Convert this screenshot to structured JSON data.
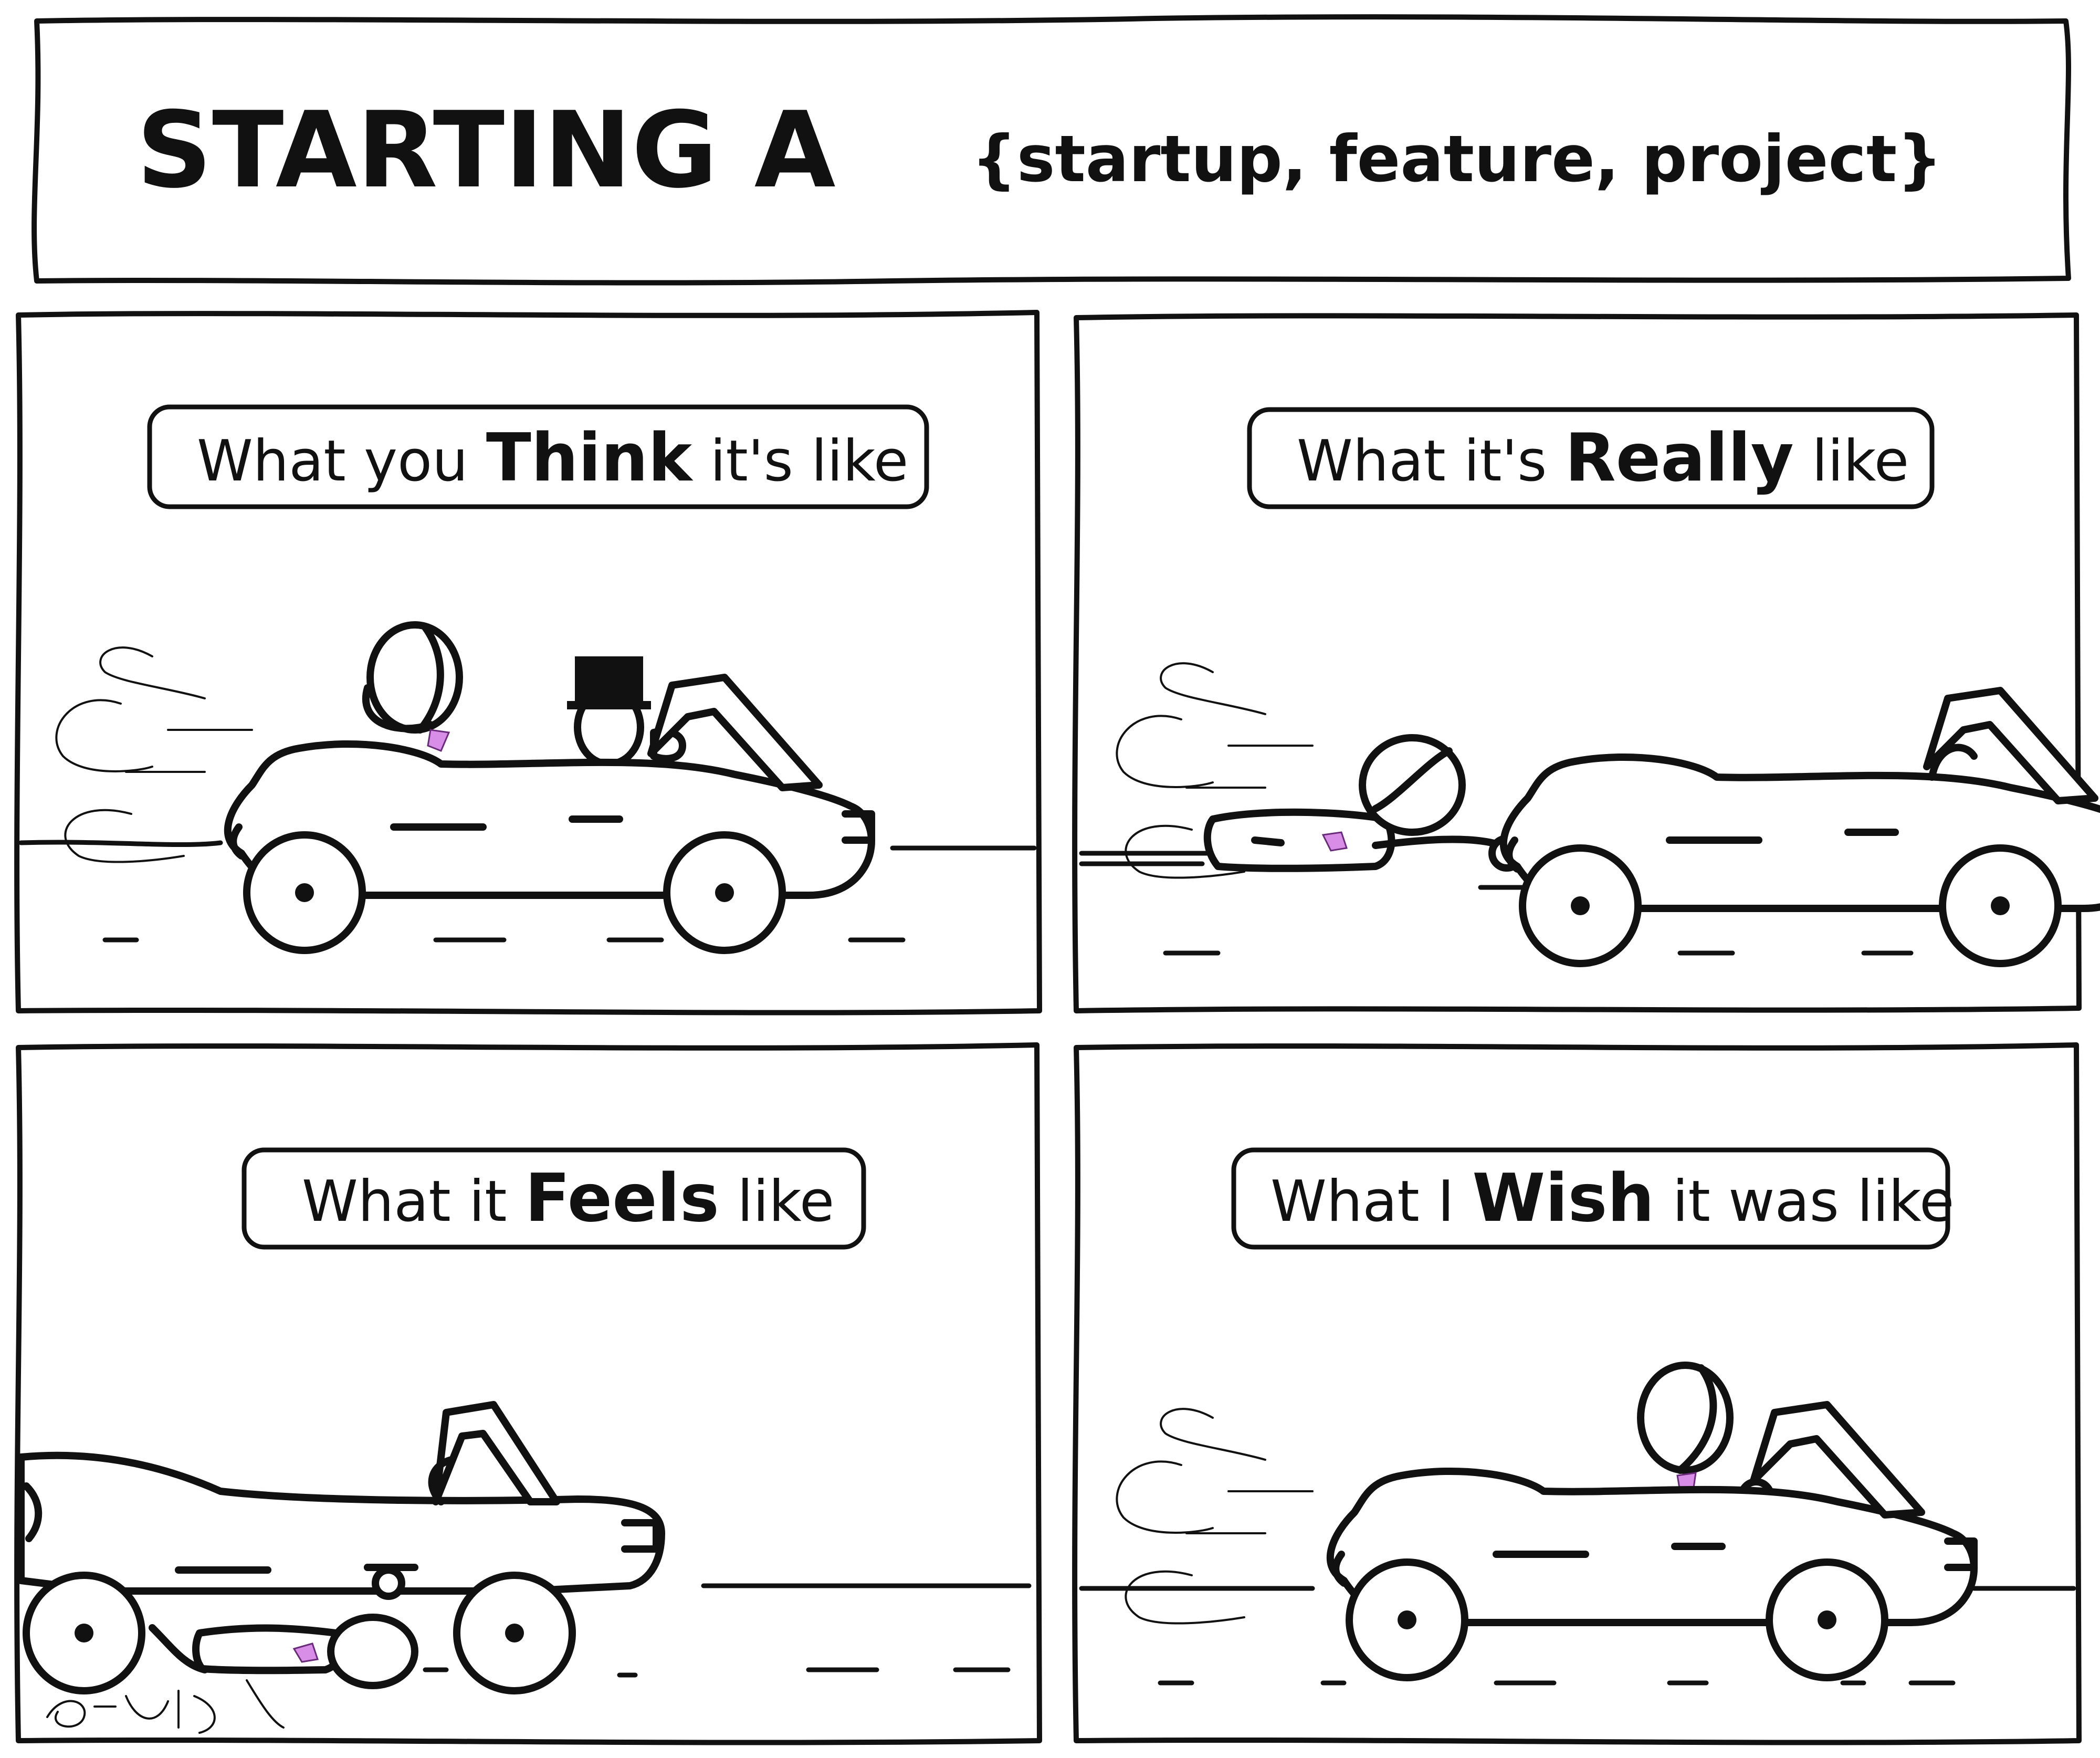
{
  "title": {
    "main": "STARTING A",
    "sub": "{startup, feature, project}"
  },
  "panels": [
    {
      "caption_before": "What you ",
      "caption_emphasis": "Think",
      "caption_after": " it's like"
    },
    {
      "caption_before": "What it's ",
      "caption_emphasis": "Really",
      "caption_after": " like"
    },
    {
      "caption_before": "What it ",
      "caption_emphasis": "Feels",
      "caption_after": " like"
    },
    {
      "caption_before": "What I ",
      "caption_emphasis": "Wish",
      "caption_after": " it was like"
    }
  ],
  "colors": {
    "ink": "#111111",
    "tie": "#d88ee6"
  }
}
